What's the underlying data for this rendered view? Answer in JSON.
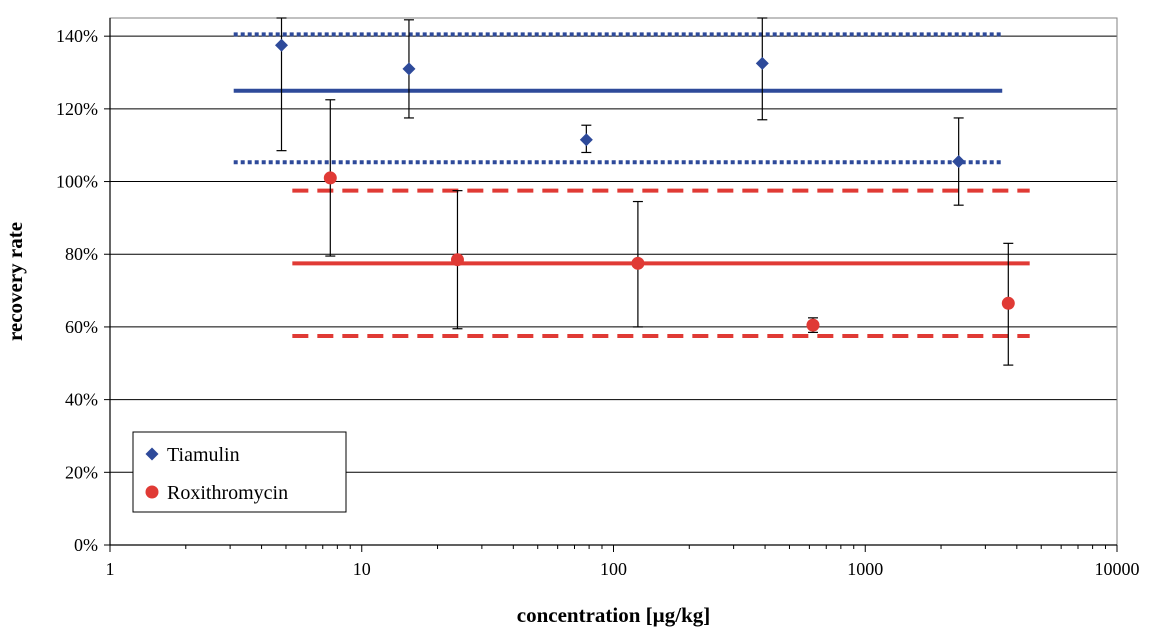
{
  "chart_data": {
    "type": "scatter",
    "title": "",
    "xlabel": "concentration [µg/kg]",
    "ylabel": "recovery rate",
    "x_scale": "log",
    "xlim": [
      1,
      10000
    ],
    "ylim": [
      0,
      1.45
    ],
    "x_ticks": [
      1,
      10,
      100,
      1000,
      10000
    ],
    "x_tick_labels": [
      "1",
      "10",
      "100",
      "1000",
      "10000"
    ],
    "y_ticks": [
      0,
      0.2,
      0.4,
      0.6,
      0.8,
      1.0,
      1.2,
      1.4
    ],
    "y_tick_labels": [
      "0%",
      "20%",
      "40%",
      "60%",
      "80%",
      "100%",
      "120%",
      "140%"
    ],
    "grid": "horizontal",
    "legend_position": "bottom-left",
    "series": [
      {
        "name": "Tiamulin",
        "marker": "diamond",
        "color": "#2E4A9A",
        "x": [
          4.8,
          15.4,
          78,
          390,
          2350
        ],
        "y": [
          1.375,
          1.31,
          1.115,
          1.325,
          1.055
        ],
        "err_low": [
          1.085,
          1.175,
          1.08,
          1.17,
          0.935
        ],
        "err_high": [
          1.45,
          1.445,
          1.155,
          1.475,
          1.175
        ]
      },
      {
        "name": "Roxithromycin",
        "marker": "circle",
        "color": "#E03A35",
        "x": [
          7.5,
          24,
          125,
          620,
          3700
        ],
        "y": [
          1.01,
          0.785,
          0.775,
          0.605,
          0.665
        ],
        "err_low": [
          0.795,
          0.595,
          0.6,
          0.585,
          0.495
        ],
        "err_high": [
          1.225,
          0.975,
          0.945,
          0.625,
          0.83
        ]
      }
    ],
    "reference_lines": [
      {
        "series": "Tiamulin",
        "style": "solid",
        "y": 1.25,
        "x_range": [
          3.1,
          3500
        ]
      },
      {
        "series": "Tiamulin",
        "style": "dotted",
        "y": 1.405,
        "x_range": [
          3.1,
          3500
        ]
      },
      {
        "series": "Tiamulin",
        "style": "dotted",
        "y": 1.053,
        "x_range": [
          3.1,
          3500
        ]
      },
      {
        "series": "Roxithromycin",
        "style": "solid",
        "y": 0.775,
        "x_range": [
          5.3,
          4500
        ]
      },
      {
        "series": "Roxithromycin",
        "style": "dashed",
        "y": 0.975,
        "x_range": [
          5.3,
          4500
        ]
      },
      {
        "series": "Roxithromycin",
        "style": "dashed",
        "y": 0.575,
        "x_range": [
          5.3,
          4500
        ]
      }
    ],
    "colors": {
      "plot_background": "#ffffff",
      "grid": "#000000",
      "frame": "#808080"
    }
  }
}
